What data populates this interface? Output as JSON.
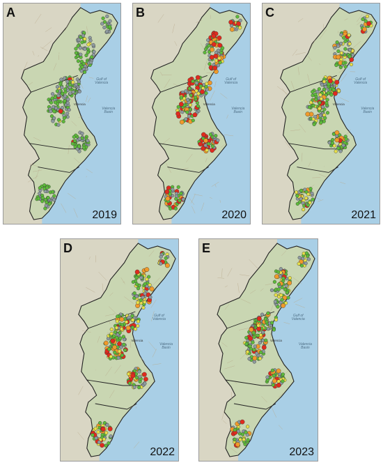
{
  "colors": {
    "sea": "#a9cfe6",
    "land": "#d9d6c4",
    "region": "#c9d6b2",
    "border": "#222222",
    "dot_green": "#5dbb3a",
    "dot_yellow": "#e8e04a",
    "dot_orange": "#f09a2a",
    "dot_red": "#e02b1e",
    "dot_grey": "#8e9aa0"
  },
  "sea_labels": {
    "gulf": "Gulf of Valencia",
    "basin": "Valencia Basin"
  },
  "city_label": "Valencia",
  "panels": [
    {
      "letter": "A",
      "year": "2019",
      "dots": {
        "green": 0.55,
        "yellow": 0.05,
        "orange": 0.01,
        "red": 0.01,
        "grey": 0.38
      }
    },
    {
      "letter": "B",
      "year": "2020",
      "dots": {
        "green": 0.28,
        "yellow": 0.08,
        "orange": 0.14,
        "red": 0.22,
        "grey": 0.28
      }
    },
    {
      "letter": "C",
      "year": "2021",
      "dots": {
        "green": 0.42,
        "yellow": 0.2,
        "orange": 0.12,
        "red": 0.06,
        "grey": 0.2
      }
    },
    {
      "letter": "D",
      "year": "2022",
      "dots": {
        "green": 0.36,
        "yellow": 0.22,
        "orange": 0.1,
        "red": 0.12,
        "grey": 0.2
      }
    },
    {
      "letter": "E",
      "year": "2023",
      "dots": {
        "green": 0.4,
        "yellow": 0.18,
        "orange": 0.12,
        "red": 0.1,
        "grey": 0.2
      }
    }
  ]
}
